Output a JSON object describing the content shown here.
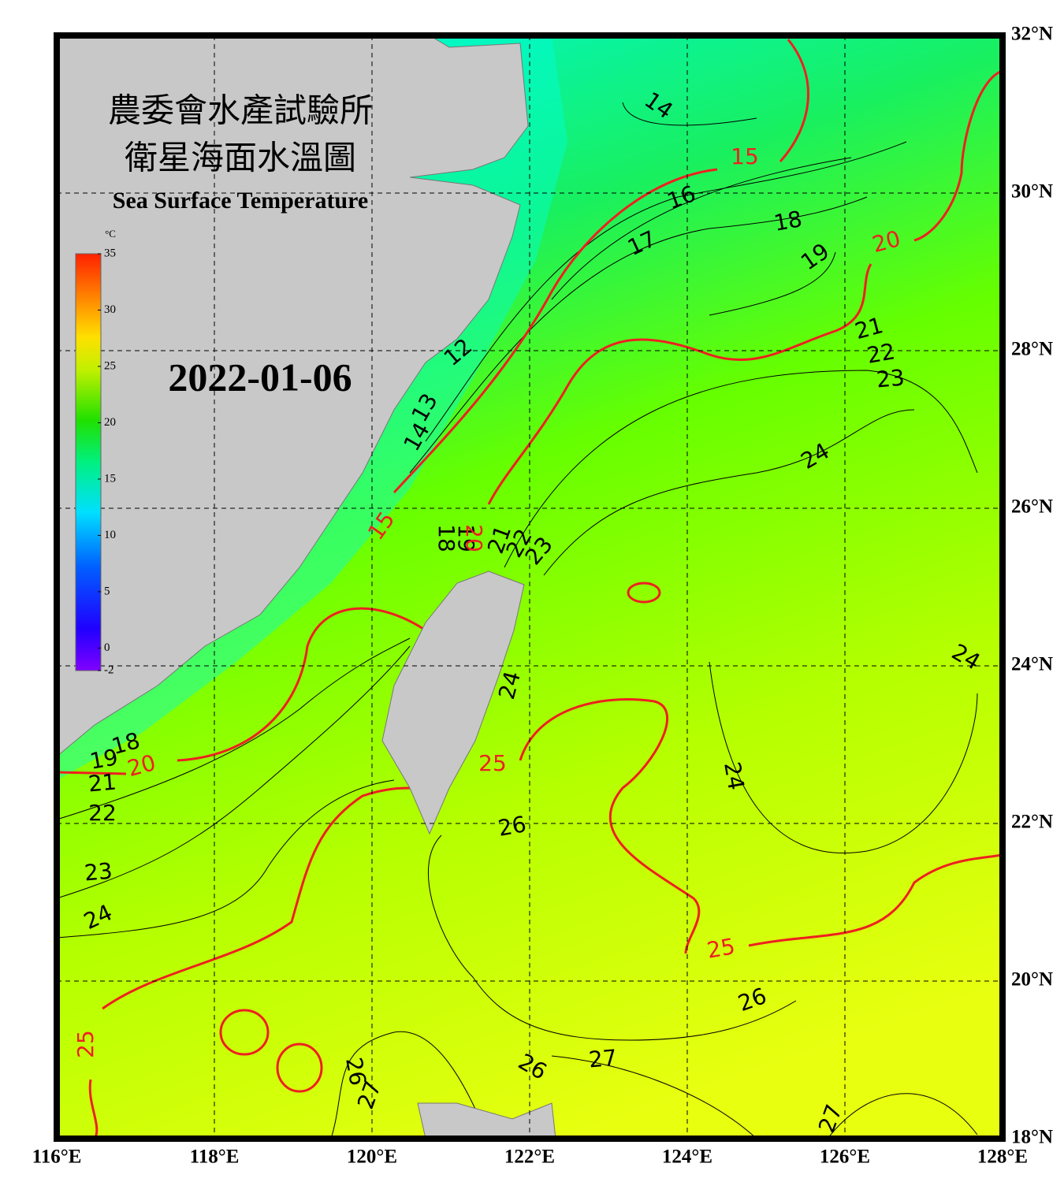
{
  "title_zh": "農委會水產試驗所",
  "subtitle_zh": "衛星海面水溫圖",
  "title_en": "Sea Surface Temperature",
  "date": "2022-01-06",
  "map": {
    "xlim": [
      116,
      128
    ],
    "ylim": [
      18,
      32
    ],
    "xticks": [
      {
        "value": 116,
        "label": "116°E"
      },
      {
        "value": 118,
        "label": "118°E"
      },
      {
        "value": 120,
        "label": "120°E"
      },
      {
        "value": 122,
        "label": "122°E"
      },
      {
        "value": 124,
        "label": "124°E"
      },
      {
        "value": 126,
        "label": "126°E"
      },
      {
        "value": 128,
        "label": "128°E"
      }
    ],
    "yticks": [
      {
        "value": 18,
        "label": "18°N"
      },
      {
        "value": 20,
        "label": "20°N"
      },
      {
        "value": 22,
        "label": "22°N"
      },
      {
        "value": 24,
        "label": "24°N"
      },
      {
        "value": 26,
        "label": "26°N"
      },
      {
        "value": 28,
        "label": "28°N"
      },
      {
        "value": 30,
        "label": "30°N"
      },
      {
        "value": 32,
        "label": "32°N"
      }
    ],
    "grid": true
  },
  "colorbar": {
    "unit": "°C",
    "lim": [
      -2,
      35
    ],
    "ticks": [
      35,
      30,
      25,
      20,
      15,
      10,
      5,
      0,
      -2
    ]
  },
  "contour_labels": [
    14,
    15,
    16,
    18,
    17,
    19,
    20,
    21,
    22,
    23,
    24,
    12,
    13,
    14,
    15,
    18,
    19,
    20,
    21,
    22,
    23,
    24,
    24,
    25,
    24,
    20,
    18,
    19,
    21,
    22,
    23,
    24,
    26,
    25,
    26,
    25,
    27,
    26,
    26,
    27,
    27
  ]
}
